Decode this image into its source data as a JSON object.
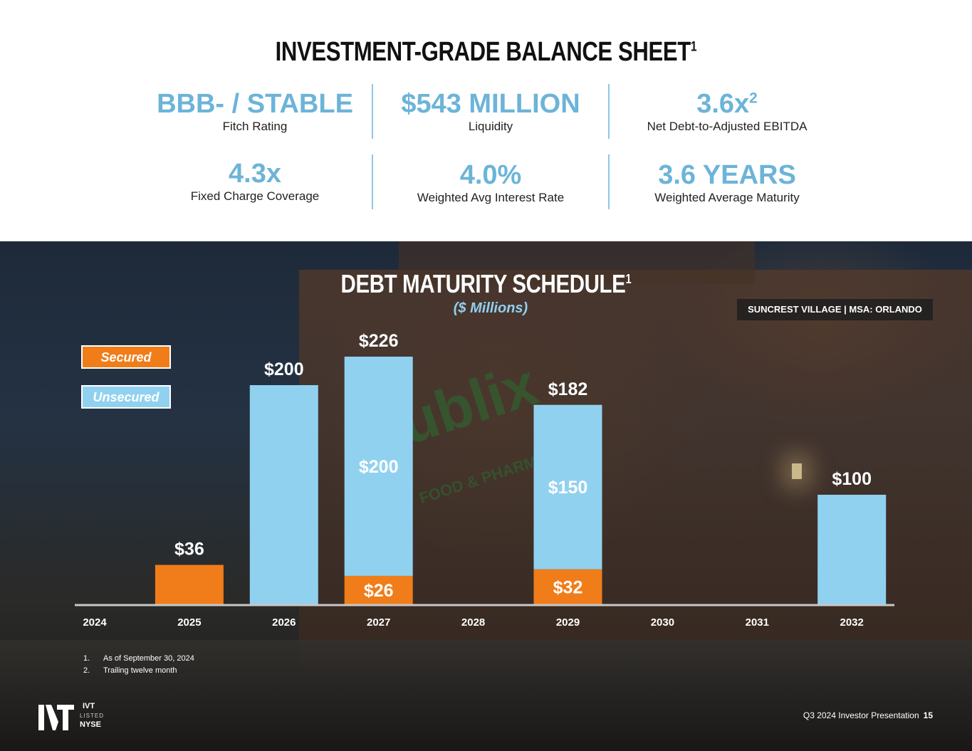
{
  "balance_sheet": {
    "title": "INVESTMENT-GRADE BALANCE SHEET",
    "title_sup": "1",
    "metrics": [
      {
        "value": "BBB- / STABLE",
        "sup": "",
        "label": "Fitch Rating"
      },
      {
        "value": "$543 MILLION",
        "sup": "",
        "label": "Liquidity"
      },
      {
        "value": "3.6x",
        "sup": "2",
        "label": "Net Debt-to-Adjusted EBITDA"
      },
      {
        "value": "4.3x",
        "sup": "",
        "label": "Fixed Charge Coverage"
      },
      {
        "value": "4.0%",
        "sup": "",
        "label": "Weighted Avg Interest Rate"
      },
      {
        "value": "3.6 YEARS",
        "sup": "",
        "label": "Weighted Average Maturity"
      }
    ]
  },
  "photo_caption": "SUNCREST VILLAGE | MSA: ORLANDO",
  "colors": {
    "secured": "#f07d1a",
    "unsecured": "#91d1f0",
    "metric": "#6cb4d8"
  },
  "chart_data": {
    "type": "bar",
    "stacked": true,
    "title": "DEBT MATURITY SCHEDULE",
    "title_sup": "1",
    "subtitle": "($ Millions)",
    "categories": [
      "2024",
      "2025",
      "2026",
      "2027",
      "2028",
      "2029",
      "2030",
      "2031",
      "2032"
    ],
    "series": [
      {
        "name": "Secured",
        "values": [
          0,
          36,
          0,
          26,
          0,
          32,
          0,
          0,
          0
        ]
      },
      {
        "name": "Unsecured",
        "values": [
          0,
          0,
          200,
          200,
          0,
          150,
          0,
          0,
          100
        ]
      }
    ],
    "totals": [
      0,
      36,
      200,
      226,
      0,
      182,
      0,
      0,
      100
    ],
    "segment_labels": {
      "Secured": [
        "",
        "",
        "",
        "$26",
        "",
        "$32",
        "",
        "",
        ""
      ],
      "Unsecured": [
        "",
        "",
        "",
        "$200",
        "",
        "$150",
        "",
        "",
        ""
      ]
    },
    "total_labels": [
      "",
      "$36",
      "$200",
      "$226",
      "",
      "$182",
      "",
      "",
      "$100"
    ],
    "legend": [
      "Secured",
      "Unsecured"
    ],
    "legend_position": "top-left",
    "ylim": [
      0,
      230
    ],
    "grid": false
  },
  "footnotes": [
    {
      "num": "1.",
      "text": "As of September 30, 2024"
    },
    {
      "num": "2.",
      "text": "Trailing twelve month"
    }
  ],
  "logo": {
    "ticker": "IVT",
    "listed": "LISTED",
    "exchange": "NYSE"
  },
  "footer": {
    "text": "Q3 2024 Investor Presentation",
    "page": "15"
  }
}
